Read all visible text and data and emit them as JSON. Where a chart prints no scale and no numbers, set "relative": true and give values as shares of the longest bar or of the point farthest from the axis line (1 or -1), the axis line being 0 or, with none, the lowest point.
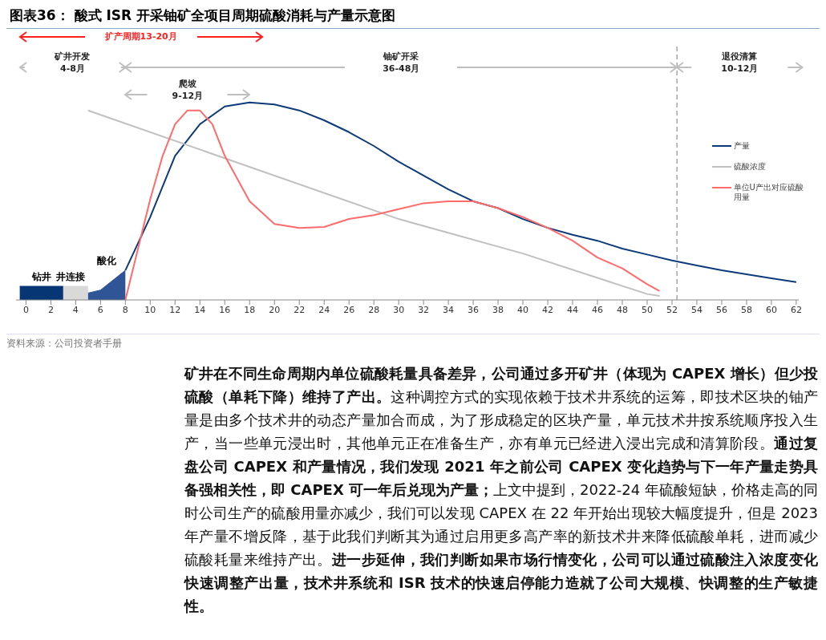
{
  "chart_data": {
    "type": "line",
    "title": "图表36： 酸式 ISR 开采铀矿全项目周期硫酸消耗与产量示意图",
    "relative": true,
    "xlim": [
      -0.8,
      62.2
    ],
    "xticks": [
      0,
      2,
      4,
      6,
      8,
      10,
      12,
      14,
      16,
      18,
      20,
      22,
      24,
      26,
      28,
      30,
      32,
      34,
      36,
      38,
      40,
      42,
      44,
      46,
      48,
      50,
      52,
      54,
      56,
      58,
      60,
      62
    ],
    "legend": "right",
    "marker": "none",
    "line_style": "solid",
    "grid": false,
    "series": [
      {
        "name": "钻井",
        "type": "area",
        "color": "#063674",
        "x": [
          -0.5,
          3
        ],
        "values": [
          0.069,
          0.069
        ]
      },
      {
        "name": "井连接",
        "type": "area",
        "color": "#d9d9d9",
        "x": [
          3,
          5
        ],
        "values": [
          0.069,
          0.069
        ]
      },
      {
        "name": "酸化",
        "type": "area",
        "color": "#2f5597",
        "x": [
          5,
          6,
          8
        ],
        "values": [
          0.035,
          0.05,
          0.15
        ]
      },
      {
        "name": "产量",
        "color": "#0d3b7a",
        "x": [
          8,
          10,
          12,
          14,
          16,
          18,
          20,
          22,
          24,
          26,
          28,
          30,
          32,
          34,
          36,
          38,
          40,
          42,
          44,
          46,
          48,
          50,
          52,
          54,
          56,
          58,
          60,
          62
        ],
        "values": [
          0.15,
          0.42,
          0.73,
          0.89,
          0.98,
          1,
          0.99,
          0.96,
          0.91,
          0.85,
          0.78,
          0.7,
          0.63,
          0.56,
          0.5,
          0.465,
          0.41,
          0.365,
          0.33,
          0.3,
          0.26,
          0.23,
          0.2,
          0.175,
          0.15,
          0.13,
          0.11,
          0.09
        ]
      },
      {
        "name": "硫酸浓度",
        "color": "#c0c0c0",
        "x": [
          5,
          30,
          40,
          50,
          51
        ],
        "values": [
          0.96,
          0.41,
          0.235,
          0.03,
          0.02
        ]
      },
      {
        "name": "单位U产出对应硫酸用量",
        "color": "#ff6b6b",
        "x": [
          8,
          10,
          11,
          12,
          13,
          14,
          15,
          16,
          18,
          20,
          22,
          24,
          26,
          28,
          30,
          32,
          34,
          36,
          38,
          40,
          42,
          44,
          46,
          48,
          50,
          51
        ],
        "values": [
          0,
          0.51,
          0.73,
          0.89,
          0.96,
          0.96,
          0.89,
          0.73,
          0.5,
          0.385,
          0.365,
          0.37,
          0.41,
          0.43,
          0.46,
          0.49,
          0.5,
          0.5,
          0.465,
          0.42,
          0.365,
          0.3,
          0.215,
          0.16,
          0.08,
          0.045
        ]
      }
    ],
    "ref_lines": [
      {
        "axis": "x",
        "value": 52.4,
        "color": "#a6a6a6",
        "line_style": "dashed"
      }
    ],
    "annotations": [
      "扩产周期13-20月",
      "矿井开发\n4-8月",
      "爬坡\n9-12月",
      "铀矿开采\n36-48月",
      "退役清算\n10-12月",
      "资料来源：公司投资者手册",
      "矿井在不同生命周期内单位硫酸耗量具备差异，公司通过多开矿井（体现为 CAPEX 增长）但少投硫酸（单耗下降）维持了产出。",
      "这种调控方式的实现依赖于技术井系统的运筹，即技术区块的铀产量是由多个技术井的动态产量加合而成，为了形成稳定的区块产量，单元技术井按系统顺序投入生产，当一些单元浸出时，其他单元正在准备生产，亦有单元已经进入浸出完成和清算阶段。",
      "通过复盘公司 CAPEX 和产量情况，我们发现 2021 年之前公司 CAPEX 变化趋势与下一年产量走势具备强相关性，即 CAPEX 可一年后兑现为产量；",
      "上文中提到，2022-24 年硫酸短缺，价格走高的同时公司生产的硫酸用量亦减少，我们可以发现 CAPEX 在 22 年开始出现较大幅度提升，但是 2023 年产量不增反降，基于此我们判断其为通过启用更多高产率的新技术井来降低硫酸单耗，进而减少硫酸耗量来维持产出。",
      "进一步延伸，我们判断如果市场行情变化，公司可以通过硫酸注入浓度变化快速调整产出量，技术井系统和 ISR 技术的快速启停能力造就了公司大规模、快调整的生产敏捷性。"
    ]
  }
}
